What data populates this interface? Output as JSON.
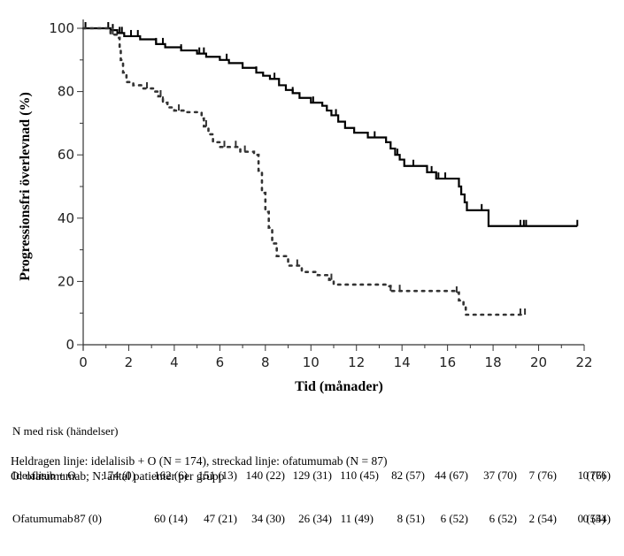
{
  "chart_data": {
    "type": "line",
    "subtype": "kaplan-meier",
    "title": "",
    "xlabel": "Tid (månader)",
    "ylabel": "Progressionsfri överlevnad (%)",
    "xlim": [
      0,
      22
    ],
    "ylim": [
      0,
      100
    ],
    "x_ticks": [
      "0",
      "2",
      "4",
      "6",
      "8",
      "10",
      "12",
      "14",
      "16",
      "18",
      "20",
      "22"
    ],
    "y_ticks": [
      "0",
      "20",
      "40",
      "60",
      "80",
      "100"
    ],
    "grid": false,
    "series": [
      {
        "name": "idelalisib + O",
        "style": "solid",
        "color": "#000000",
        "steps": [
          [
            0,
            100
          ],
          [
            1.2,
            99.4
          ],
          [
            1.5,
            98.5
          ],
          [
            1.8,
            97.5
          ],
          [
            2.5,
            96.5
          ],
          [
            3.2,
            95
          ],
          [
            3.6,
            94
          ],
          [
            4.3,
            93
          ],
          [
            5,
            92
          ],
          [
            5.4,
            91
          ],
          [
            6,
            90
          ],
          [
            6.4,
            89
          ],
          [
            7,
            87.5
          ],
          [
            7.6,
            86
          ],
          [
            7.9,
            85
          ],
          [
            8.2,
            84
          ],
          [
            8.6,
            82
          ],
          [
            8.9,
            80.5
          ],
          [
            9.2,
            79.5
          ],
          [
            9.5,
            78
          ],
          [
            10,
            76.5
          ],
          [
            10.5,
            75.5
          ],
          [
            10.7,
            74
          ],
          [
            10.9,
            72.5
          ],
          [
            11.2,
            70.5
          ],
          [
            11.5,
            68.5
          ],
          [
            11.9,
            67
          ],
          [
            12.5,
            65.5
          ],
          [
            13.3,
            64
          ],
          [
            13.5,
            62
          ],
          [
            13.7,
            60
          ],
          [
            13.9,
            58.5
          ],
          [
            14.1,
            56.5
          ],
          [
            15.1,
            54.5
          ],
          [
            15.5,
            52.5
          ],
          [
            16.5,
            50
          ],
          [
            16.6,
            47.5
          ],
          [
            16.75,
            45
          ],
          [
            16.85,
            42.5
          ],
          [
            17.8,
            37.5
          ],
          [
            21.7,
            37.5
          ]
        ],
        "censors": [
          0.1,
          1.1,
          1.3,
          1.6,
          1.7,
          2.1,
          2.4,
          3.2,
          3.5,
          4.3,
          5.1,
          5.3,
          6.3,
          7.6,
          8.4,
          9.2,
          10.1,
          11.1,
          12.8,
          13.8,
          14.5,
          15.3,
          15.6,
          15.9,
          16.6,
          17.5,
          19.2,
          19.35,
          19.45,
          21.7
        ]
      },
      {
        "name": "ofatumumab",
        "style": "dashed",
        "color": "#333333",
        "steps": [
          [
            0,
            100
          ],
          [
            1.2,
            98
          ],
          [
            1.5,
            97
          ],
          [
            1.6,
            94
          ],
          [
            1.65,
            90
          ],
          [
            1.75,
            86
          ],
          [
            1.9,
            83
          ],
          [
            2.2,
            82
          ],
          [
            2.6,
            81
          ],
          [
            3.1,
            80
          ],
          [
            3.3,
            78.5
          ],
          [
            3.5,
            76.5
          ],
          [
            3.7,
            75
          ],
          [
            4,
            74
          ],
          [
            4.5,
            73.5
          ],
          [
            5.2,
            71.5
          ],
          [
            5.3,
            69
          ],
          [
            5.5,
            66.5
          ],
          [
            5.7,
            64
          ],
          [
            6,
            62.5
          ],
          [
            6.9,
            61
          ],
          [
            7.5,
            60
          ],
          [
            7.7,
            55
          ],
          [
            7.85,
            48
          ],
          [
            8,
            42
          ],
          [
            8.15,
            37
          ],
          [
            8.3,
            32
          ],
          [
            8.5,
            28
          ],
          [
            9,
            25
          ],
          [
            9.6,
            23
          ],
          [
            10.3,
            22
          ],
          [
            10.8,
            20.5
          ],
          [
            11,
            19
          ],
          [
            13.3,
            18.5
          ],
          [
            13.5,
            17
          ],
          [
            16.4,
            16.5
          ],
          [
            16.5,
            14
          ],
          [
            16.7,
            12
          ],
          [
            16.8,
            9.5
          ],
          [
            19.4,
            9.5
          ]
        ],
        "censors": [
          1.3,
          2.8,
          3.4,
          3.5,
          4.2,
          5.4,
          6.2,
          6.7,
          7.1,
          9.4,
          10.9,
          13.5,
          13.9,
          16.4,
          19.2,
          19.4
        ]
      }
    ],
    "risk_table": {
      "header": "N med risk (händelser)",
      "time_points": [
        0,
        2,
        4,
        6,
        8,
        10,
        12,
        14,
        16,
        18,
        20,
        22
      ],
      "rows": [
        {
          "label": "Idelalisib + O",
          "values": [
            "174 (0)",
            "162 (6)",
            "151 (13)",
            "140 (22)",
            "129 (31)",
            "110 (45)",
            "82 (57)",
            "44 (67)",
            "37 (70)",
            "7 (76)",
            "1 (76)",
            "0 (76)"
          ]
        },
        {
          "label": "Ofatumumab",
          "values": [
            "87 (0)",
            "60 (14)",
            "47 (21)",
            "34 (30)",
            "26 (34)",
            "11 (49)",
            "8 (51)",
            "6 (52)",
            "6 (52)",
            "2 (54)",
            "0 (54)",
            "0 (54)"
          ]
        }
      ]
    },
    "footnotes": [
      "Heldragen linje: idelalisib + O (N = 174), streckad linje: ofatumumab (N = 87)",
      "O: ofatumumab; N: antal patienter per grupp"
    ]
  }
}
